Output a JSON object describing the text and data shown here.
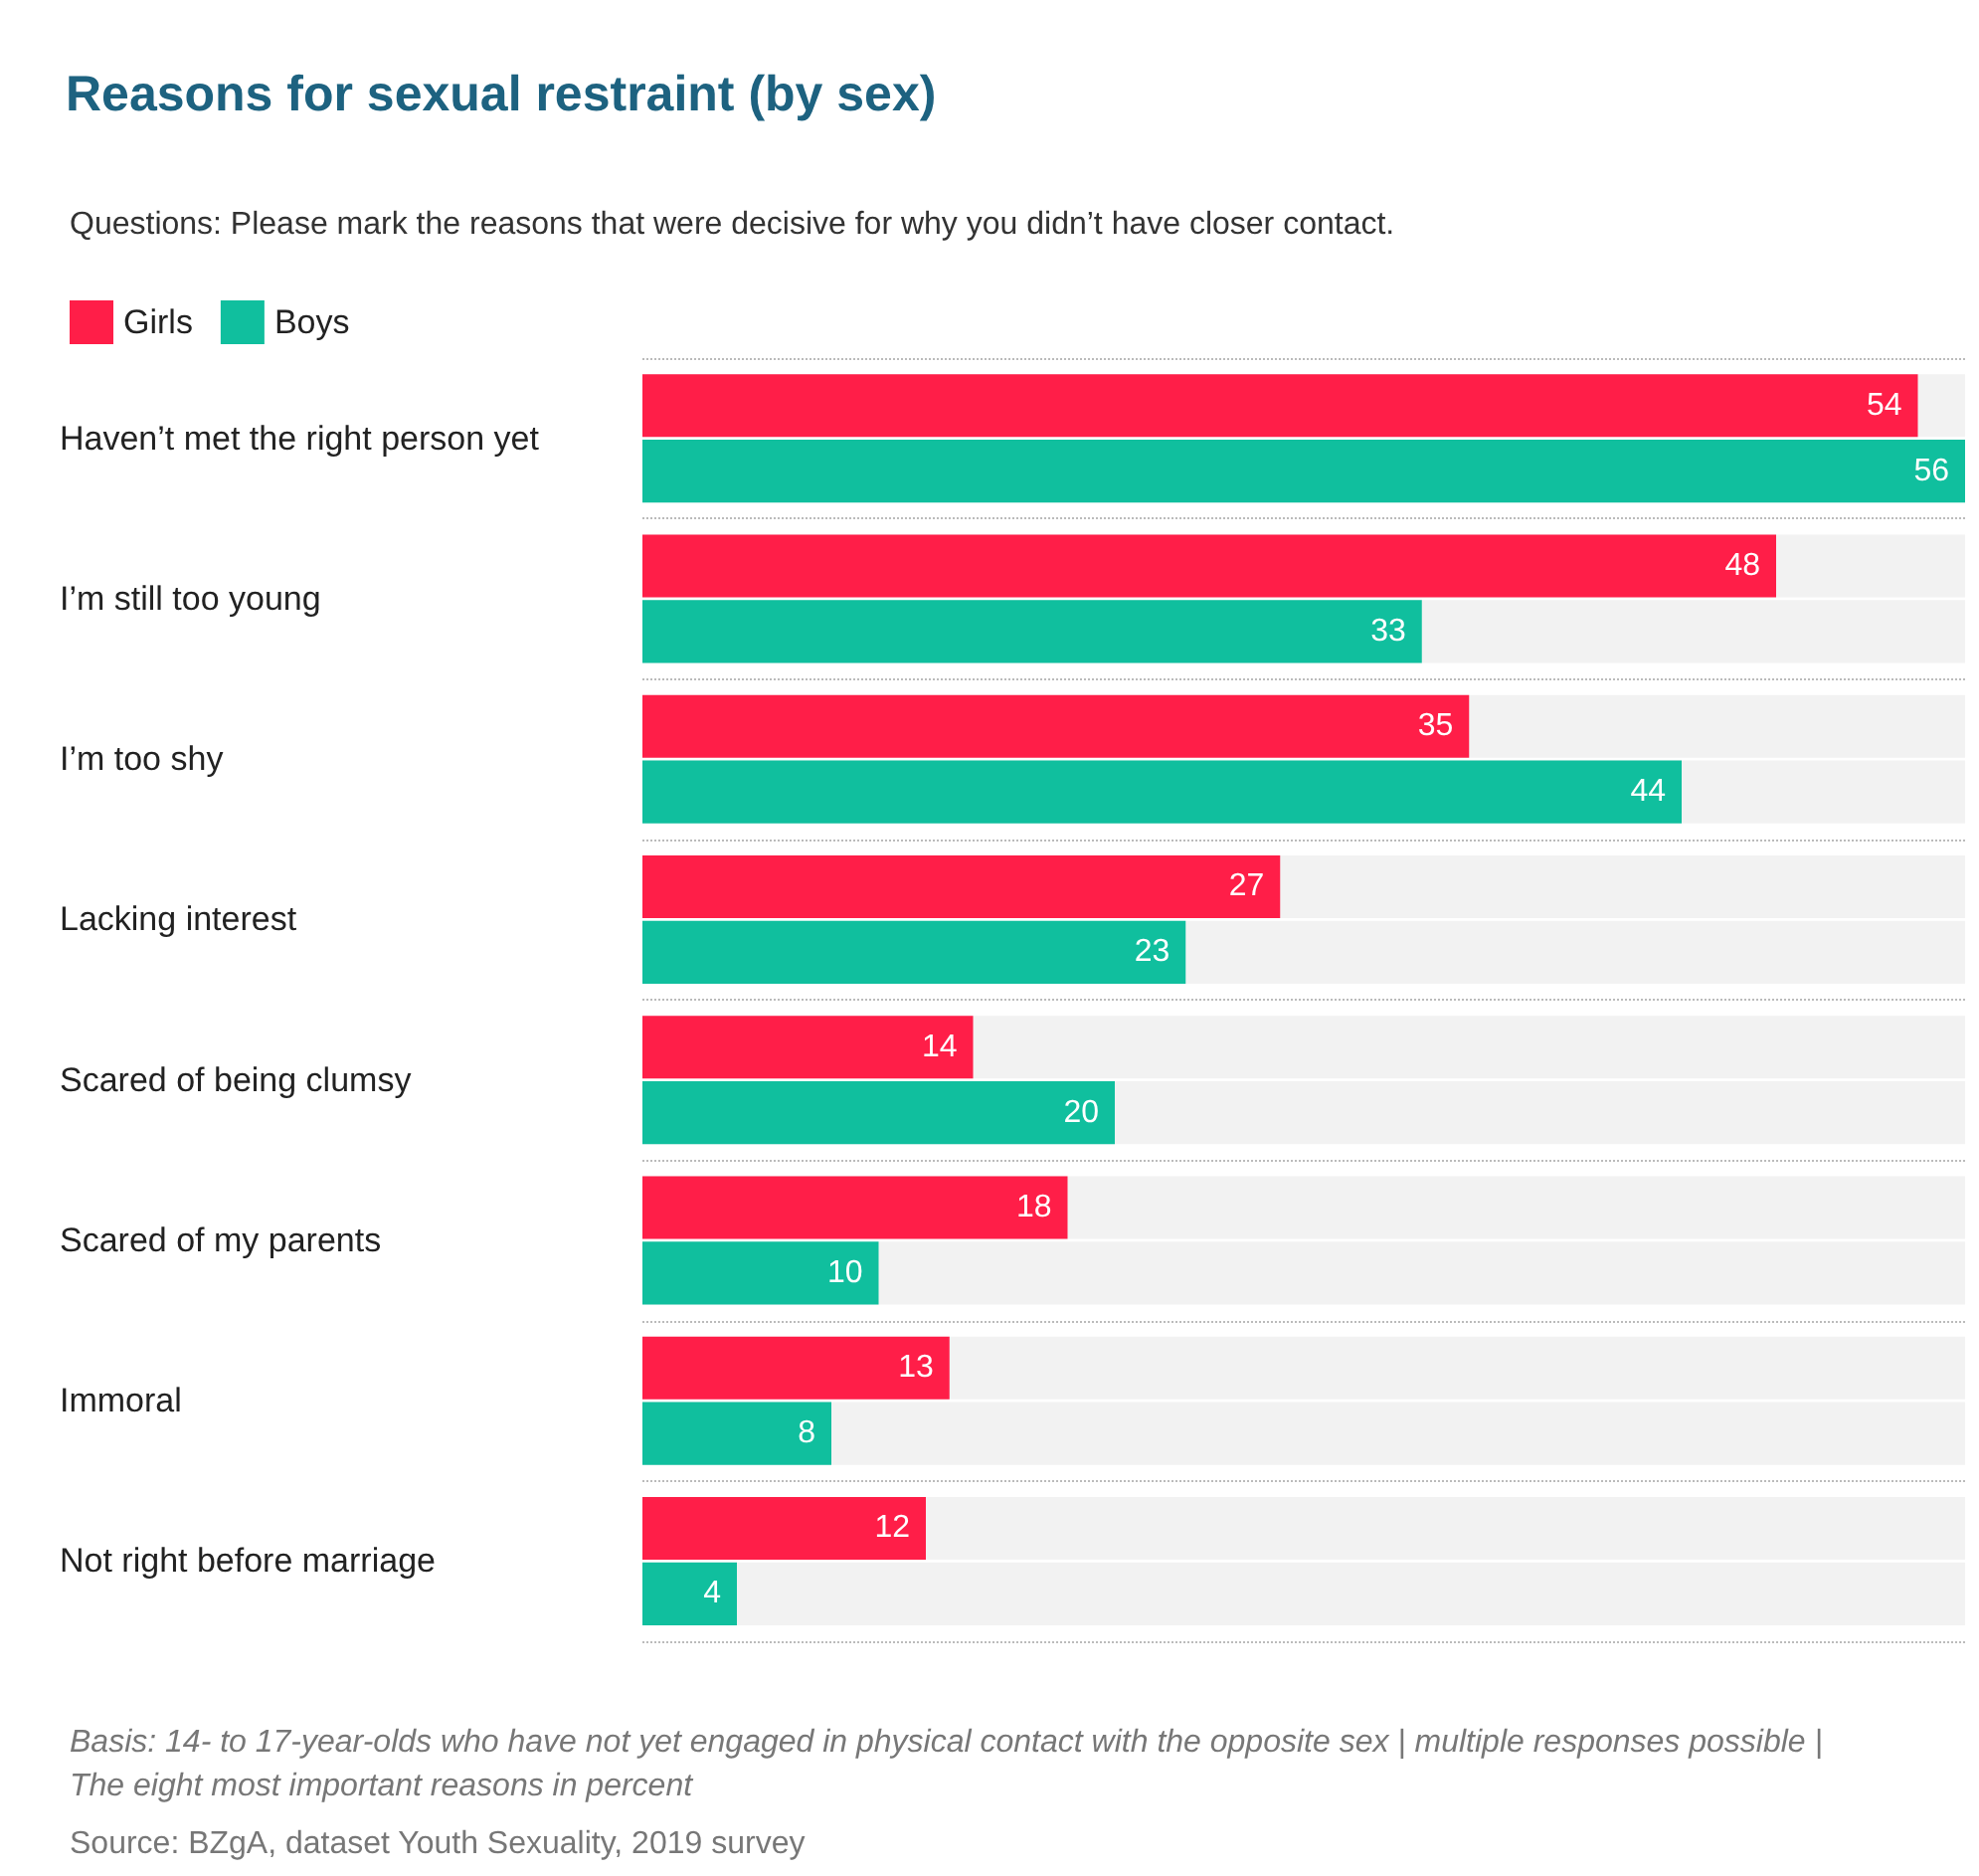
{
  "chart_data": {
    "type": "bar",
    "orientation": "horizontal",
    "title": "Reasons for sexual restraint (by sex)",
    "subtitle": "Questions: Please mark the reasons that were decisive for why you didn’t have closer contact.",
    "categories": [
      "Haven’t met the right person yet",
      "I’m still too young",
      "I’m too shy",
      "Lacking interest",
      "Scared of being clumsy",
      "Scared of my parents",
      "Immoral",
      "Not right before marriage"
    ],
    "series": [
      {
        "name": "Girls",
        "color": "#ff1e48",
        "values": [
          54,
          48,
          35,
          27,
          14,
          18,
          13,
          12
        ]
      },
      {
        "name": "Boys",
        "color": "#10bf9e",
        "values": [
          56,
          33,
          44,
          23,
          20,
          10,
          8,
          4
        ]
      }
    ],
    "data_labels": true,
    "legend": "top left",
    "grid": "y",
    "annotations": [
      "Basis: 14- to 17-year-olds who have not yet engaged in physical contact with the opposite sex | multiple responses possible | The eight most important reasons in percent",
      "Source: BZgA, dataset Youth Sexuality, 2019 survey"
    ]
  }
}
